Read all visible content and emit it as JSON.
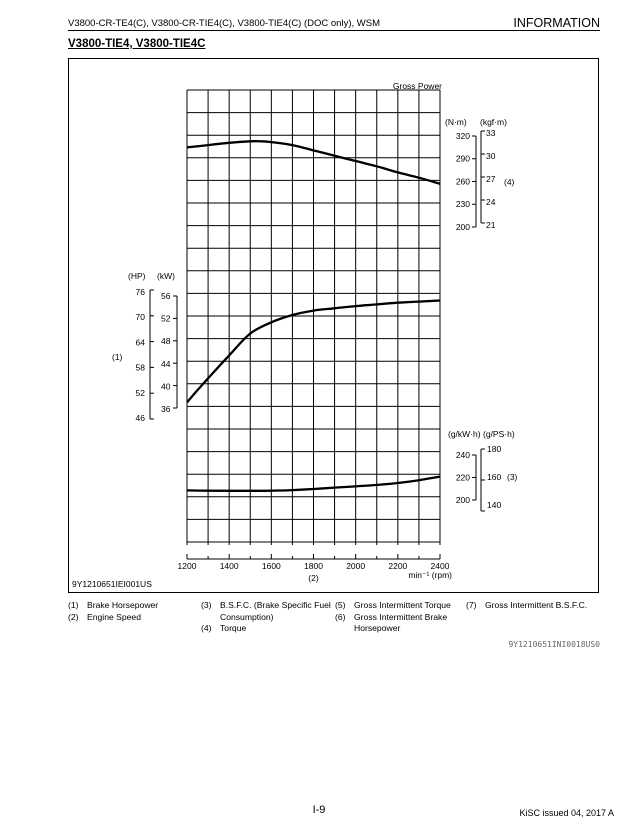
{
  "header": {
    "left": "V3800-CR-TE4(C), V3800-CR-TIE4(C), V3800-TIE4(C) (DOC only), WSM",
    "right": "INFORMATION"
  },
  "section_title": "V3800-TIE4, V3800-TIE4C",
  "figure_id": "9Y1210651IEI001US",
  "image_ref": "9Y1210651INI0018US0",
  "page_number": "I-9",
  "issued": "KiSC issued 04, 2017 A",
  "legend": [
    {
      "num": "(1)",
      "text": "Brake Horsepower"
    },
    {
      "num": "(2)",
      "text": "Engine Speed"
    },
    {
      "num": "(3)",
      "text": "B.S.F.C. (Brake Specific Fuel Consumption)"
    },
    {
      "num": "(4)",
      "text": "Torque"
    },
    {
      "num": "(5)",
      "text": "Gross Intermittent Torque"
    },
    {
      "num": "(6)",
      "text": "Gross Intermittent Brake Horsepower"
    },
    {
      "num": "(7)",
      "text": "Gross Intermittent B.S.F.C."
    }
  ],
  "chart_data": {
    "type": "line",
    "title": "Gross Power",
    "xlabel_unit": "min⁻¹ (rpm)",
    "xlabel_ref": "(2)",
    "x_ticks": [
      "1200",
      "1400",
      "1600",
      "1800",
      "2000",
      "2200",
      "2400"
    ],
    "xlim": [
      1200,
      2400
    ],
    "grid": true,
    "torque_axis": {
      "ref": "(4)",
      "unit_left": "(N·m)",
      "unit_right": "(kgf·m)",
      "left_ticks": [
        "320",
        "290",
        "260",
        "230",
        "200"
      ],
      "right_ticks": [
        "33",
        "30",
        "27",
        "24",
        "21"
      ],
      "ylim_nm": [
        200,
        320
      ]
    },
    "power_axis": {
      "ref": "(1)",
      "unit_hp": "(HP)",
      "unit_kw": "(kW)",
      "hp_ticks": [
        "76",
        "70",
        "64",
        "58",
        "52",
        "46"
      ],
      "kw_ticks": [
        "56",
        "52",
        "48",
        "44",
        "40",
        "36"
      ],
      "ylim_kw": [
        36,
        56
      ]
    },
    "bsfc_axis": {
      "ref": "(3)",
      "unit_left": "(g/kW·h)",
      "unit_right": "(g/PS·h)",
      "left_ticks": [
        "240",
        "220",
        "200"
      ],
      "right_ticks": [
        "180",
        "160",
        "140"
      ],
      "ylim_gkwh": [
        200,
        240
      ]
    },
    "series": [
      {
        "axis": "torque",
        "x": [
          1200,
          1300,
          1400,
          1500,
          1550,
          1600,
          1700,
          1800,
          1900,
          2000,
          2100,
          2200,
          2300,
          2400
        ],
        "y": [
          305,
          308,
          311,
          313,
          313,
          312,
          308,
          301,
          294,
          287,
          280,
          272,
          265,
          257
        ]
      },
      {
        "axis": "power",
        "x": [
          1200,
          1250,
          1300,
          1400,
          1500,
          1600,
          1700,
          1800,
          1900,
          2000,
          2100,
          2200,
          2300,
          2400
        ],
        "y": [
          37.0,
          39.2,
          41.3,
          45.4,
          49.3,
          51.3,
          52.6,
          53.4,
          53.8,
          54.2,
          54.5,
          54.8,
          55.0,
          55.2
        ]
      },
      {
        "axis": "bsfc",
        "x": [
          1200,
          1300,
          1400,
          1500,
          1600,
          1700,
          1800,
          1900,
          2000,
          2100,
          2200,
          2300,
          2350,
          2400
        ],
        "y": [
          208.5,
          208.3,
          208.2,
          208.2,
          208.3,
          208.8,
          209.8,
          211.0,
          212.1,
          213.4,
          215.1,
          217.6,
          219.2,
          220.8
        ]
      }
    ]
  }
}
